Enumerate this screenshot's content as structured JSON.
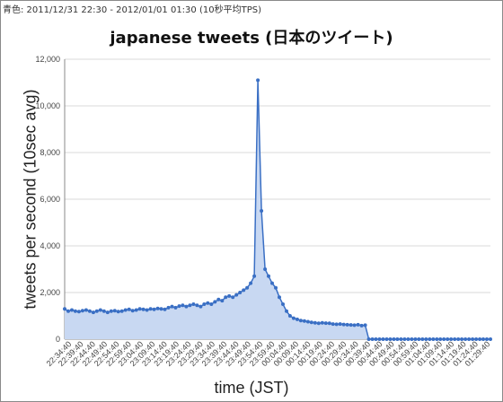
{
  "caption": "青色: 2011/12/31 22:30 - 2012/01/01 01:30 (10秒平均TPS)",
  "chart_data": {
    "type": "area",
    "title": "japanese tweets (日本のツイート)",
    "xlabel": "time (JST)",
    "ylabel": "tweets per second (10sec avg)",
    "ylim": [
      0,
      12000
    ],
    "yticks": [
      0,
      2000,
      4000,
      6000,
      8000,
      10000,
      12000
    ],
    "ytick_labels": [
      "0",
      "2,000",
      "4,000",
      "6,000",
      "8,000",
      "10,000",
      "12,000"
    ],
    "grid": true,
    "legend": "none",
    "series_color": "#3a6fc4",
    "fill_color": "#c8d8f2",
    "xtick_labels": [
      "22:34:40",
      "22:39:40",
      "22:44:40",
      "22:49:40",
      "22:54:40",
      "22:59:40",
      "23:04:40",
      "23:09:40",
      "23:14:40",
      "23:19:40",
      "23:24:40",
      "23:29:40",
      "23:34:40",
      "23:39:40",
      "23:44:40",
      "23:49:40",
      "23:54:40",
      "23:59:40",
      "00:04:40",
      "00:09:40",
      "00:14:40",
      "00:19:40",
      "00:24:40",
      "00:29:40",
      "00:34:40",
      "00:39:40",
      "00:44:40",
      "00:49:40",
      "00:54:40",
      "00:59:40",
      "01:04:40",
      "01:09:40",
      "01:14:40",
      "01:19:40",
      "01:24:40",
      "01:29:40"
    ],
    "values": [
      1300,
      1200,
      1250,
      1200,
      1180,
      1220,
      1250,
      1200,
      1150,
      1200,
      1250,
      1200,
      1150,
      1200,
      1220,
      1180,
      1200,
      1250,
      1280,
      1220,
      1250,
      1300,
      1280,
      1250,
      1300,
      1280,
      1320,
      1300,
      1280,
      1350,
      1400,
      1350,
      1420,
      1450,
      1400,
      1450,
      1500,
      1450,
      1400,
      1500,
      1550,
      1500,
      1600,
      1700,
      1650,
      1800,
      1850,
      1800,
      1900,
      2000,
      2100,
      2200,
      2400,
      2700,
      11100,
      5500,
      3000,
      2700,
      2400,
      2200,
      1800,
      1500,
      1200,
      1000,
      900,
      850,
      800,
      780,
      750,
      720,
      700,
      680,
      700,
      690,
      680,
      650,
      640,
      650,
      630,
      620,
      610,
      600,
      620,
      580,
      600,
      0,
      0,
      0,
      0,
      0,
      0,
      0,
      0,
      0,
      0,
      0,
      0,
      0,
      0,
      0,
      0,
      0,
      0,
      0,
      0,
      0,
      0,
      0,
      0,
      0,
      0,
      0,
      0,
      0,
      0,
      0,
      0,
      0,
      0,
      0
    ]
  }
}
